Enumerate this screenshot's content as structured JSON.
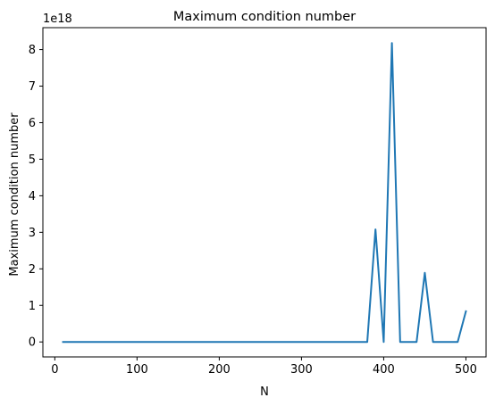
{
  "chart_data": {
    "type": "line",
    "title": "Maximum condition number",
    "xlabel": "N",
    "ylabel": "Maximum condition number",
    "offset_text": "1e18",
    "xlim": [
      -14.5,
      524.5
    ],
    "ylim": [
      -0.41,
      8.6
    ],
    "x_ticks": [
      0,
      100,
      200,
      300,
      400,
      500
    ],
    "x_tick_labels": [
      "0",
      "100",
      "200",
      "300",
      "400",
      "500"
    ],
    "y_ticks": [
      0,
      1,
      2,
      3,
      4,
      5,
      6,
      7,
      8
    ],
    "y_tick_labels": [
      "0",
      "1",
      "2",
      "3",
      "4",
      "5",
      "6",
      "7",
      "8"
    ],
    "grid": false,
    "legend": false,
    "series": [
      {
        "color": "#1f77b4",
        "x": [
          10,
          20,
          30,
          40,
          50,
          60,
          70,
          80,
          90,
          100,
          110,
          120,
          130,
          140,
          150,
          160,
          170,
          180,
          190,
          200,
          210,
          220,
          230,
          240,
          250,
          260,
          270,
          280,
          290,
          300,
          310,
          320,
          330,
          340,
          350,
          360,
          370,
          380,
          390,
          400,
          410,
          420,
          430,
          440,
          450,
          460,
          470,
          480,
          490,
          500
        ],
        "values": [
          0,
          0,
          0,
          0,
          0,
          0,
          0,
          0,
          0,
          0,
          0,
          0,
          0,
          0,
          0,
          0,
          0,
          0,
          0,
          0,
          0,
          0,
          0,
          0,
          0,
          0,
          0,
          0,
          0,
          0,
          0,
          0,
          0,
          0,
          0,
          0,
          0,
          0,
          3.08,
          0,
          8.18,
          0,
          0,
          0,
          1.89,
          0,
          0,
          0,
          0,
          0.84
        ]
      }
    ]
  }
}
